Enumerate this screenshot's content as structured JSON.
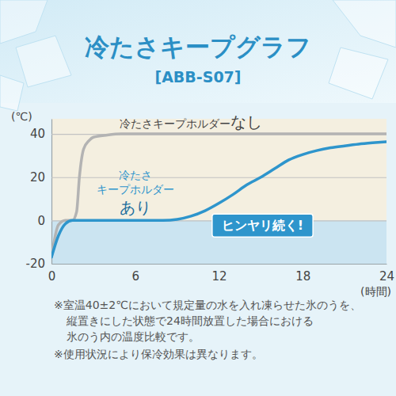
{
  "chart_data": {
    "type": "line",
    "title": "冷たさキープグラフ",
    "subtitle": "[ABB-S07]",
    "ylabel": "(℃)",
    "xlabel": "(時間)",
    "x": [
      0,
      0.5,
      1,
      1.5,
      1.8,
      2,
      2.3,
      2.7,
      3,
      4,
      5,
      6,
      7,
      8,
      9,
      10,
      11,
      12,
      13,
      14,
      15,
      16,
      17,
      18,
      19,
      20,
      21,
      22,
      23,
      24
    ],
    "series": [
      {
        "name": "冷たさキープホルダーなし",
        "color": "#b3b3b3",
        "values": [
          -17,
          -2,
          0,
          0,
          4,
          20,
          33,
          37,
          38.5,
          39.5,
          40,
          40,
          40,
          40,
          40,
          40,
          40,
          40,
          40,
          40,
          40,
          40,
          40,
          40,
          40,
          40,
          40,
          40,
          40,
          40
        ]
      },
      {
        "name": "冷たさキープホルダーあり",
        "color": "#2e95cc",
        "values": [
          -17,
          -7,
          -1.5,
          0,
          0,
          0,
          0,
          0,
          0,
          0,
          0,
          0,
          0,
          0,
          0.5,
          2,
          4.5,
          8,
          12,
          16.5,
          20,
          24,
          28,
          30.5,
          32.3,
          33.6,
          34.5,
          35.3,
          35.9,
          36.4
        ]
      }
    ],
    "xlim": [
      0,
      24
    ],
    "xticks": [
      0,
      6,
      12,
      18,
      24
    ],
    "ylim": [
      -20,
      47
    ],
    "yticks": [
      -20,
      0,
      20,
      40
    ],
    "grid": true,
    "annotations": [
      "ヒンヤリ続く!"
    ],
    "notes": [
      [
        "※室温40±2℃において規定量の水を入れ凍らせた氷のうを、",
        "縦置きにした状態で24時間放置した場合における",
        "氷のう内の温度比較です。"
      ],
      [
        "※使用状況により保冷効果は異なります。"
      ]
    ]
  }
}
